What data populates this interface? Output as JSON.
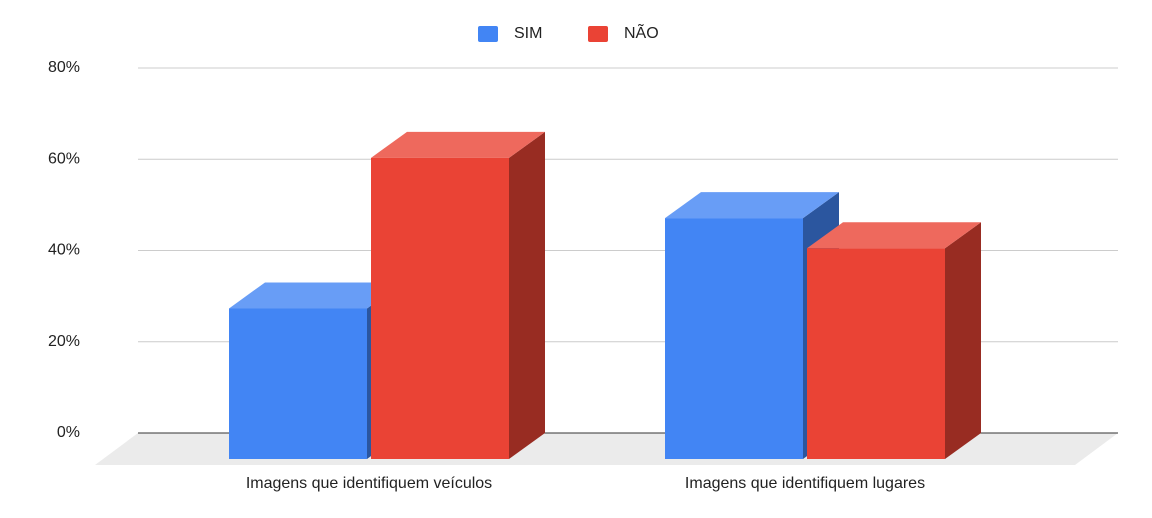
{
  "chart_data": {
    "type": "bar3d",
    "categories": [
      "Imagens que identifiquem veículos",
      "Imagens que identifiquem lugares"
    ],
    "series": [
      {
        "name": "SIM",
        "color": "#4285f4",
        "values": [
          30,
          48
        ]
      },
      {
        "name": "NÃO",
        "color": "#ea4335",
        "values": [
          60,
          42
        ]
      }
    ],
    "ylim": [
      0,
      80
    ],
    "yticks": [
      {
        "value": 0,
        "label": "0%"
      },
      {
        "value": 20,
        "label": "20%"
      },
      {
        "value": 40,
        "label": "40%"
      },
      {
        "value": 60,
        "label": "60%"
      },
      {
        "value": 80,
        "label": "80%"
      }
    ],
    "grid": true,
    "legend": "top"
  }
}
